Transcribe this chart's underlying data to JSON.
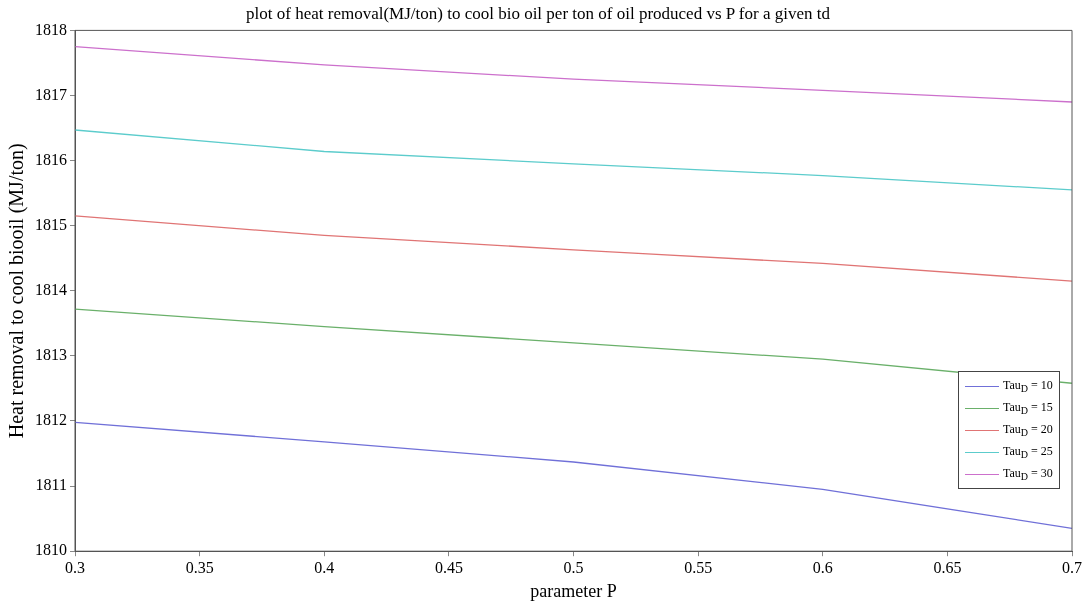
{
  "chart_data": {
    "type": "line",
    "title": "plot of heat removal(MJ/ton) to cool bio oil per ton of oil produced vs P for a given td",
    "xlabel": "parameter P",
    "ylabel": "Heat removal to cool biooil (MJ/ton)",
    "x": [
      0.3,
      0.4,
      0.5,
      0.6,
      0.7
    ],
    "series": [
      {
        "name": "Tau$_{D}$ = 10",
        "color": "#7070d8",
        "values": [
          1811.98,
          1811.68,
          1811.37,
          1810.95,
          1810.35
        ]
      },
      {
        "name": "Tau$_{D}$ = 15",
        "color": "#6ab06a",
        "values": [
          1813.72,
          1813.45,
          1813.2,
          1812.95,
          1812.58
        ]
      },
      {
        "name": "Tau$_{D}$ = 20",
        "color": "#e07474",
        "values": [
          1815.15,
          1814.85,
          1814.63,
          1814.42,
          1814.15
        ]
      },
      {
        "name": "Tau$_{D}$ = 25",
        "color": "#5ccccc",
        "values": [
          1816.47,
          1816.14,
          1815.95,
          1815.77,
          1815.55
        ]
      },
      {
        "name": "Tau$_{D}$ = 30",
        "color": "#cc70cc",
        "values": [
          1817.75,
          1817.47,
          1817.25,
          1817.08,
          1816.9
        ]
      }
    ],
    "xlim": [
      0.3,
      0.7
    ],
    "xticks": [
      0.3,
      0.35,
      0.4,
      0.45,
      0.5,
      0.55,
      0.6,
      0.65,
      0.7
    ],
    "ylim": [
      1810,
      1818
    ],
    "yticks": [
      1810,
      1811,
      1812,
      1813,
      1814,
      1815,
      1816,
      1817,
      1818
    ],
    "grid": false,
    "legend": "bottom right",
    "marker": "none",
    "line_style": "solid"
  }
}
